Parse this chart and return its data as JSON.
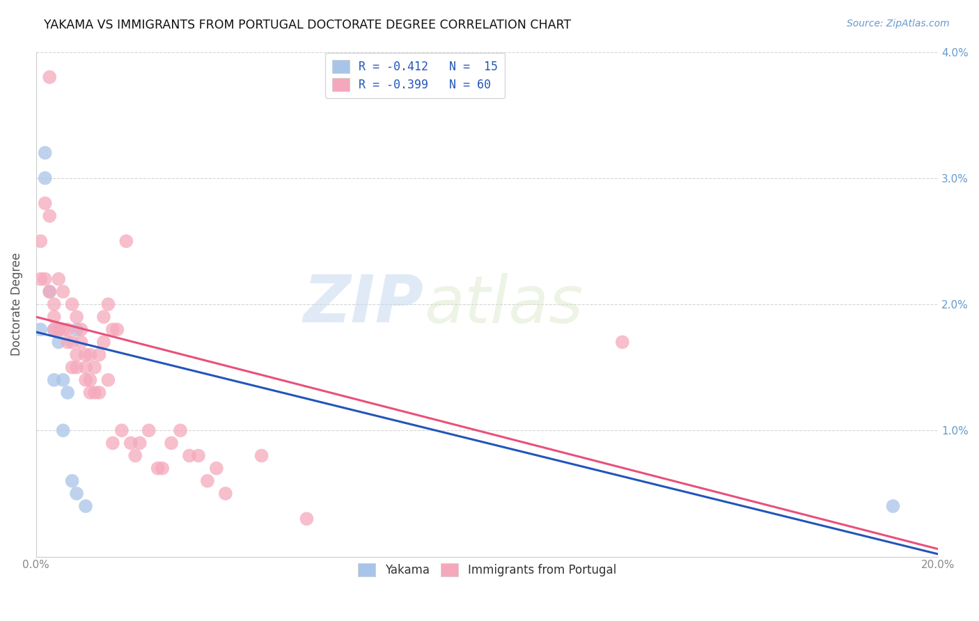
{
  "title": "YAKAMA VS IMMIGRANTS FROM PORTUGAL DOCTORATE DEGREE CORRELATION CHART",
  "source": "Source: ZipAtlas.com",
  "ylabel": "Doctorate Degree",
  "xlim": [
    0,
    0.2
  ],
  "ylim": [
    0,
    0.04
  ],
  "xticks": [
    0.0,
    0.05,
    0.1,
    0.15,
    0.2
  ],
  "yticks": [
    0.0,
    0.01,
    0.02,
    0.03,
    0.04
  ],
  "xtick_labels_left": [
    "0.0%",
    "",
    "",
    "",
    ""
  ],
  "xtick_labels_right": [
    "",
    "",
    "",
    "",
    "20.0%"
  ],
  "ytick_labels_left": [
    "",
    "",
    "",
    "",
    ""
  ],
  "ytick_labels_right": [
    "",
    "1.0%",
    "2.0%",
    "3.0%",
    "4.0%"
  ],
  "background_color": "#ffffff",
  "grid_color": "#d0d0d0",
  "watermark_zip": "ZIP",
  "watermark_atlas": "atlas",
  "yakama_color": "#a8c4e8",
  "portugal_color": "#f5a8bc",
  "yakama_line_color": "#2255bb",
  "portugal_line_color": "#e8507a",
  "legend_r1": "R = -0.412",
  "legend_n1": "N = 15",
  "legend_r2": "R = -0.399",
  "legend_n2": "N = 60",
  "yakama_x": [
    0.001,
    0.002,
    0.002,
    0.003,
    0.004,
    0.004,
    0.005,
    0.006,
    0.006,
    0.007,
    0.008,
    0.009,
    0.009,
    0.011,
    0.19
  ],
  "yakama_y": [
    0.018,
    0.032,
    0.03,
    0.021,
    0.018,
    0.014,
    0.017,
    0.014,
    0.01,
    0.013,
    0.006,
    0.005,
    0.018,
    0.004,
    0.004
  ],
  "portugal_x": [
    0.001,
    0.001,
    0.002,
    0.002,
    0.003,
    0.003,
    0.003,
    0.004,
    0.004,
    0.004,
    0.005,
    0.005,
    0.005,
    0.006,
    0.006,
    0.007,
    0.007,
    0.008,
    0.008,
    0.008,
    0.009,
    0.009,
    0.009,
    0.01,
    0.01,
    0.011,
    0.011,
    0.011,
    0.012,
    0.012,
    0.012,
    0.013,
    0.013,
    0.014,
    0.014,
    0.015,
    0.015,
    0.016,
    0.016,
    0.017,
    0.017,
    0.018,
    0.019,
    0.02,
    0.021,
    0.022,
    0.023,
    0.025,
    0.027,
    0.028,
    0.03,
    0.032,
    0.034,
    0.036,
    0.038,
    0.04,
    0.042,
    0.05,
    0.06,
    0.13
  ],
  "portugal_y": [
    0.025,
    0.022,
    0.028,
    0.022,
    0.038,
    0.027,
    0.021,
    0.02,
    0.019,
    0.018,
    0.022,
    0.018,
    0.018,
    0.021,
    0.018,
    0.018,
    0.017,
    0.02,
    0.017,
    0.015,
    0.019,
    0.016,
    0.015,
    0.018,
    0.017,
    0.016,
    0.015,
    0.014,
    0.016,
    0.014,
    0.013,
    0.015,
    0.013,
    0.016,
    0.013,
    0.019,
    0.017,
    0.02,
    0.014,
    0.018,
    0.009,
    0.018,
    0.01,
    0.025,
    0.009,
    0.008,
    0.009,
    0.01,
    0.007,
    0.007,
    0.009,
    0.01,
    0.008,
    0.008,
    0.006,
    0.007,
    0.005,
    0.008,
    0.003,
    0.017
  ]
}
